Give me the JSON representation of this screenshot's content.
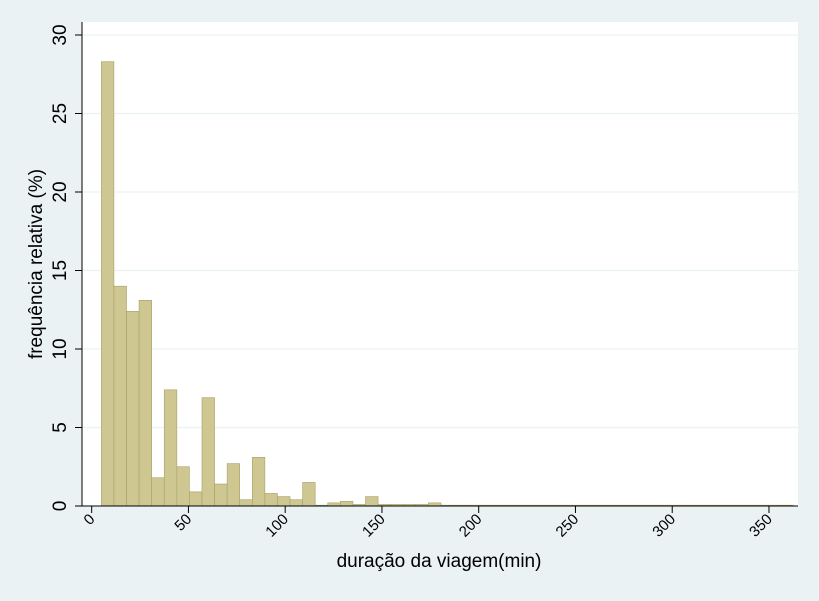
{
  "chart_data": {
    "type": "bar",
    "histogram": true,
    "bin_width": 6.5,
    "bin_start": 5,
    "xlabel": "duração da viagem(min)",
    "ylabel": "frequência relativa (%)",
    "xlim": [
      -5,
      365
    ],
    "ylim": [
      0,
      30
    ],
    "xticks": [
      0,
      50,
      100,
      150,
      200,
      250,
      300,
      350
    ],
    "yticks": [
      0,
      5,
      10,
      15,
      20,
      25,
      30
    ],
    "grid": true,
    "bar_color": "#cfc792",
    "bar_stroke": "#a7a067",
    "values": [
      28.3,
      14.0,
      12.4,
      13.1,
      1.8,
      7.4,
      2.5,
      0.9,
      6.9,
      1.4,
      2.7,
      0.4,
      3.1,
      0.8,
      0.6,
      0.4,
      1.5,
      0.05,
      0.2,
      0.3,
      0.1,
      0.6,
      0.1,
      0.1,
      0.1,
      0.1,
      0.2,
      0.05,
      0.05,
      0.05,
      0.05,
      0.05,
      0.05,
      0.05,
      0.05,
      0.05,
      0.05,
      0.05,
      0.05,
      0.05,
      0.05,
      0.05,
      0.05,
      0.05,
      0.05,
      0.05,
      0.05,
      0.05,
      0.05,
      0.05,
      0.05,
      0.05,
      0.05,
      0.05,
      0.05
    ]
  },
  "colors": {
    "outer_background": "#eaf2f3",
    "plot_background": "#ffffff",
    "grid": "#eaf2f3",
    "axis": "#000000"
  }
}
